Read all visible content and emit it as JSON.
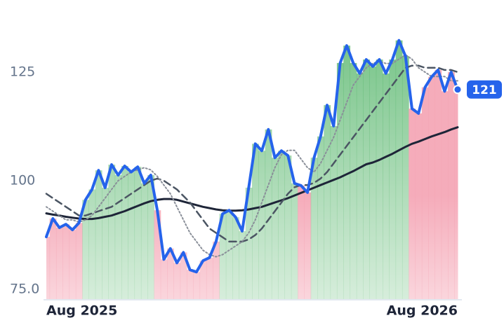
{
  "chart_data": {
    "type": "line",
    "categories": [
      "Aug 2025",
      null,
      null,
      null,
      null,
      null,
      null,
      null,
      null,
      null,
      null,
      null,
      null,
      null,
      null,
      null,
      null,
      null,
      null,
      null,
      null,
      null,
      null,
      null,
      null,
      null,
      null,
      null,
      null,
      null,
      null,
      null,
      null,
      null,
      null,
      null,
      null,
      null,
      null,
      null,
      null,
      null,
      null,
      null,
      null,
      null,
      null,
      null,
      null,
      null,
      null,
      null,
      null,
      null,
      null,
      null,
      null,
      null,
      null,
      null,
      null,
      null,
      null,
      "Aug 2026"
    ],
    "ylim": [
      72.6,
      141.6
    ],
    "yticks": [
      {
        "value": 75,
        "label": "75.0"
      },
      100,
      125
    ],
    "up_color": "#5cb870",
    "down_color": "#f4a3b3",
    "series": [
      {
        "color": "#2563eb",
        "style": "solid",
        "width": 4,
        "values": [
          87.1,
          91.3,
          89.2,
          90,
          88.7,
          90.3,
          95.6,
          98,
          102.4,
          98.4,
          103.7,
          101.3,
          103.4,
          102,
          103.2,
          99.4,
          101.3,
          93.2,
          81.9,
          84.4,
          81.1,
          83.5,
          79.5,
          79,
          81.6,
          82.3,
          86,
          92.4,
          93.2,
          91.6,
          88.4,
          98.4,
          108.5,
          106.9,
          111.8,
          105.3,
          106.9,
          105.8,
          99.4,
          98.9,
          97.3,
          105.3,
          110.2,
          117.4,
          112.6,
          127.1,
          131.1,
          127.1,
          124.7,
          127.9,
          126.3,
          127.9,
          124.7,
          127.9,
          132.3,
          128.7,
          116.6,
          115.5,
          121.5,
          123.9,
          125.5,
          120.6,
          125,
          121
        ]
      },
      {
        "color": "#8a8f99",
        "style": "dotted",
        "width": 2,
        "values": [
          94,
          93,
          92,
          91,
          91,
          90.5,
          91,
          92,
          94,
          96,
          98,
          100,
          101,
          102,
          102.5,
          103,
          102.5,
          101,
          99,
          97,
          94,
          91,
          88,
          86,
          84,
          83,
          82.5,
          83,
          84,
          85,
          86,
          88,
          91,
          95,
          99,
          103,
          106,
          107,
          107,
          105,
          103,
          102,
          104,
          107,
          110,
          114,
          118,
          122,
          124,
          126,
          127,
          127.5,
          127,
          127,
          128,
          129,
          128,
          126,
          125,
          124,
          124,
          124,
          123,
          123
        ]
      },
      {
        "color": "#4b5563",
        "style": "dashed",
        "width": 2.5,
        "values": [
          97,
          96,
          95,
          94,
          93,
          92,
          92,
          92.5,
          93,
          93.5,
          94,
          95,
          96,
          97,
          98,
          99,
          100,
          100.5,
          100,
          99,
          98,
          96.5,
          95,
          93,
          91,
          89,
          88,
          87,
          86,
          86,
          86,
          86.5,
          87.5,
          89,
          91,
          93,
          95,
          97,
          98.5,
          99,
          99,
          99.5,
          100.5,
          102,
          104,
          106,
          108,
          110,
          112,
          114,
          116,
          118,
          120,
          122,
          124,
          126,
          126.5,
          126.5,
          126,
          126,
          126,
          125.5,
          125.5,
          125
        ]
      },
      {
        "color": "#1e2538",
        "style": "solid",
        "width": 3,
        "values": [
          92.5,
          92.2,
          92,
          91.7,
          91.5,
          91.3,
          91.2,
          91.2,
          91.4,
          91.7,
          92,
          92.5,
          93,
          93.6,
          94.2,
          94.8,
          95.3,
          95.6,
          95.8,
          95.8,
          95.6,
          95.2,
          94.8,
          94.4,
          94,
          93.7,
          93.4,
          93.2,
          93.1,
          93.1,
          93.2,
          93.4,
          93.7,
          94,
          94.5,
          95,
          95.5,
          96,
          96.6,
          97.2,
          97.8,
          98.4,
          99,
          99.6,
          100.2,
          100.8,
          101.5,
          102.2,
          103,
          103.8,
          104.2,
          104.8,
          105.5,
          106.2,
          107,
          107.8,
          108.5,
          109,
          109.6,
          110.2,
          110.7,
          111.2,
          111.8,
          112.3
        ]
      }
    ]
  }
}
